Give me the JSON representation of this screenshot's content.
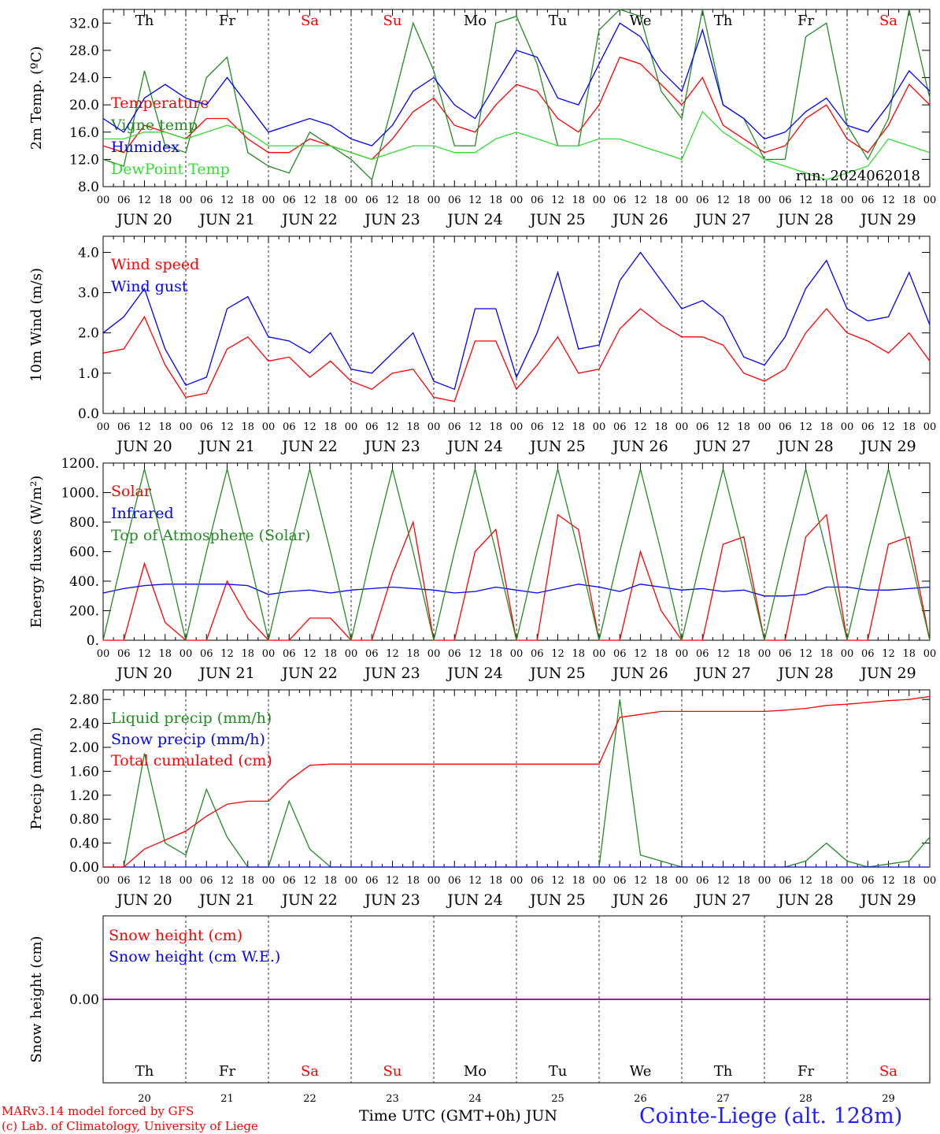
{
  "figure": {
    "credit_line1": "MARv3.14 model forced by GFS",
    "credit_line2": "(c) Lab. of Climatology, University of Liege",
    "x_title": "Time UTC (GMT+0h) JUN",
    "station": "Cointe-Liege (alt. 128m)",
    "run_label": "run: 2024062018",
    "colors": {
      "red": "#ff0000",
      "blue": "#0000ff",
      "green": "#228b22",
      "light_green": "#33dd33",
      "purple": "#800080",
      "weekend": "#ff0000",
      "axis": "#000000"
    }
  },
  "chart_data": [
    {
      "type": "line",
      "ylabel": "2m Temp. (ºC)",
      "ylim": [
        8,
        34
      ],
      "yticks": [
        "8.0",
        "12.0",
        "16.0",
        "20.0",
        "24.0",
        "28.0",
        "32.0"
      ],
      "ytick_values": [
        8,
        12,
        16,
        20,
        24,
        28,
        32
      ],
      "x_hour_labels": [
        "00",
        "06",
        "12",
        "18"
      ],
      "x_day_labels": [
        "JUN 20",
        "JUN 21",
        "JUN 22",
        "JUN 23",
        "JUN 24",
        "JUN 25",
        "JUN 26",
        "JUN 27",
        "JUN 28",
        "JUN 29"
      ],
      "weekday_labels": [
        "Th",
        "Fr",
        "Sa",
        "Su",
        "Mo",
        "Tu",
        "We",
        "Th",
        "Fr",
        "Sa"
      ],
      "weekend_days": [
        "Sa",
        "Su"
      ],
      "x_hours": [
        0,
        6,
        12,
        18,
        24,
        30,
        36,
        42,
        48,
        54,
        60,
        66,
        72,
        78,
        84,
        90,
        96,
        102,
        108,
        114,
        120,
        126,
        132,
        138,
        144,
        150,
        156,
        162,
        168,
        174,
        180,
        186,
        192,
        198,
        204,
        210,
        216,
        222,
        228,
        234,
        240
      ],
      "series": [
        {
          "name": "Temperature",
          "color": "#ff0000",
          "values": [
            14,
            13,
            17,
            16,
            15,
            18,
            18,
            15,
            13,
            13,
            15,
            14,
            13,
            12,
            15,
            19,
            21,
            17,
            16,
            20,
            23,
            22,
            18,
            16,
            20,
            27,
            26,
            23,
            20,
            24,
            17,
            15,
            13,
            14,
            18,
            20,
            15,
            13,
            17,
            23,
            20
          ]
        },
        {
          "name": "Vigne temp",
          "color": "#228b22",
          "values": [
            12,
            11,
            25,
            14,
            13,
            24,
            27,
            13,
            11,
            10,
            16,
            14,
            12,
            9,
            20,
            32,
            25,
            14,
            14,
            32,
            33,
            26,
            14,
            14,
            31,
            34,
            33,
            22,
            18,
            34,
            20,
            18,
            12,
            12,
            30,
            32,
            17,
            12,
            18,
            34,
            21
          ]
        },
        {
          "name": "Humidex",
          "color": "#0000ff",
          "values": [
            18,
            16,
            21,
            23,
            21,
            20,
            24,
            20,
            16,
            17,
            18,
            17,
            15,
            14,
            17,
            22,
            24,
            20,
            18,
            23,
            28,
            27,
            21,
            20,
            26,
            32,
            30,
            25,
            22,
            31,
            20,
            18,
            15,
            16,
            19,
            21,
            17,
            16,
            20,
            25,
            22
          ]
        },
        {
          "name": "DewPoint Temp",
          "color": "#33dd33",
          "values": [
            15,
            15,
            16,
            16,
            15,
            16,
            17,
            16,
            14,
            14,
            14,
            14,
            13,
            12,
            13,
            14,
            14,
            13,
            13,
            15,
            16,
            15,
            14,
            14,
            15,
            15,
            14,
            13,
            12,
            19,
            16,
            14,
            12,
            11,
            10,
            9,
            10,
            11,
            15,
            14,
            13
          ]
        }
      ]
    },
    {
      "type": "line",
      "ylabel": "10m Wind (m/s)",
      "ylim": [
        0,
        4.4
      ],
      "yticks": [
        "0.0",
        "1.0",
        "2.0",
        "3.0",
        "4.0"
      ],
      "ytick_values": [
        0,
        1,
        2,
        3,
        4
      ],
      "x_hour_labels": [
        "00",
        "06",
        "12",
        "18"
      ],
      "x_day_labels": [
        "JUN 20",
        "JUN 21",
        "JUN 22",
        "JUN 23",
        "JUN 24",
        "JUN 25",
        "JUN 26",
        "JUN 27",
        "JUN 28",
        "JUN 29"
      ],
      "x_hours": [
        0,
        6,
        12,
        18,
        24,
        30,
        36,
        42,
        48,
        54,
        60,
        66,
        72,
        78,
        84,
        90,
        96,
        102,
        108,
        114,
        120,
        126,
        132,
        138,
        144,
        150,
        156,
        162,
        168,
        174,
        180,
        186,
        192,
        198,
        204,
        210,
        216,
        222,
        228,
        234,
        240
      ],
      "series": [
        {
          "name": "Wind speed",
          "color": "#ff0000",
          "values": [
            1.5,
            1.6,
            2.4,
            1.2,
            0.4,
            0.5,
            1.6,
            1.9,
            1.3,
            1.4,
            0.9,
            1.3,
            0.8,
            0.6,
            1.0,
            1.1,
            0.4,
            0.3,
            1.8,
            1.8,
            0.6,
            1.2,
            1.9,
            1.0,
            1.1,
            2.1,
            2.6,
            2.2,
            1.9,
            1.9,
            1.7,
            1.0,
            0.8,
            1.1,
            2.0,
            2.6,
            2.0,
            1.8,
            1.5,
            2.0,
            1.3
          ]
        },
        {
          "name": "Wind gust",
          "color": "#0000ff",
          "values": [
            2.0,
            2.4,
            3.1,
            1.6,
            0.7,
            0.9,
            2.6,
            2.9,
            1.9,
            1.8,
            1.5,
            2.0,
            1.1,
            1.0,
            1.5,
            2.0,
            0.8,
            0.6,
            2.6,
            2.6,
            0.9,
            2.0,
            3.5,
            1.6,
            1.7,
            3.3,
            4.0,
            3.3,
            2.6,
            2.8,
            2.4,
            1.4,
            1.2,
            1.9,
            3.1,
            3.8,
            2.6,
            2.3,
            2.4,
            3.5,
            2.2
          ]
        }
      ]
    },
    {
      "type": "line",
      "ylabel": "Energy fluxes (W/m²)",
      "ylim": [
        0,
        1200
      ],
      "yticks": [
        "0.",
        "200.",
        "400.",
        "600.",
        "800.",
        "1000.",
        "1200."
      ],
      "ytick_values": [
        0,
        200,
        400,
        600,
        800,
        1000,
        1200
      ],
      "x_hour_labels": [
        "00",
        "06",
        "12",
        "18"
      ],
      "x_day_labels": [
        "JUN 20",
        "JUN 21",
        "JUN 22",
        "JUN 23",
        "JUN 24",
        "JUN 25",
        "JUN 26",
        "JUN 27",
        "JUN 28",
        "JUN 29"
      ],
      "x_hours": [
        0,
        6,
        12,
        18,
        24,
        30,
        36,
        42,
        48,
        54,
        60,
        66,
        72,
        78,
        84,
        90,
        96,
        102,
        108,
        114,
        120,
        126,
        132,
        138,
        144,
        150,
        156,
        162,
        168,
        174,
        180,
        186,
        192,
        198,
        204,
        210,
        216,
        222,
        228,
        234,
        240
      ],
      "series": [
        {
          "name": "Solar",
          "color": "#ff0000",
          "values": [
            0,
            0,
            520,
            120,
            0,
            0,
            400,
            150,
            0,
            0,
            150,
            150,
            0,
            0,
            450,
            800,
            0,
            0,
            600,
            750,
            0,
            0,
            850,
            750,
            0,
            0,
            600,
            200,
            0,
            0,
            650,
            700,
            0,
            0,
            700,
            850,
            0,
            0,
            650,
            700,
            0
          ]
        },
        {
          "name": "Infrared",
          "color": "#0000ff",
          "values": [
            320,
            350,
            370,
            380,
            380,
            380,
            380,
            370,
            310,
            330,
            340,
            320,
            340,
            350,
            360,
            350,
            340,
            320,
            330,
            360,
            340,
            320,
            350,
            380,
            360,
            330,
            380,
            360,
            340,
            350,
            330,
            340,
            300,
            300,
            310,
            360,
            360,
            340,
            340,
            350,
            360
          ]
        },
        {
          "name": "Top of Atmosphere (Solar)",
          "color": "#228b22",
          "values": [
            0,
            600,
            1160,
            600,
            0,
            600,
            1160,
            600,
            0,
            600,
            1160,
            600,
            0,
            600,
            1160,
            600,
            0,
            600,
            1160,
            600,
            0,
            600,
            1160,
            600,
            0,
            600,
            1160,
            600,
            0,
            600,
            1160,
            600,
            0,
            600,
            1160,
            600,
            0,
            600,
            1160,
            600,
            0
          ]
        }
      ]
    },
    {
      "type": "line",
      "ylabel": "Precip (mm/h)",
      "ylim": [
        0,
        2.96
      ],
      "yticks": [
        "0.00",
        "0.40",
        "0.80",
        "1.20",
        "1.60",
        "2.00",
        "2.40",
        "2.80"
      ],
      "ytick_values": [
        0,
        0.4,
        0.8,
        1.2,
        1.6,
        2.0,
        2.4,
        2.8
      ],
      "x_hour_labels": [
        "00",
        "06",
        "12",
        "18"
      ],
      "x_day_labels": [
        "JUN 20",
        "JUN 21",
        "JUN 22",
        "JUN 23",
        "JUN 24",
        "JUN 25",
        "JUN 26",
        "JUN 27",
        "JUN 28",
        "JUN 29"
      ],
      "x_hours": [
        0,
        6,
        12,
        18,
        24,
        30,
        36,
        42,
        48,
        54,
        60,
        66,
        72,
        78,
        84,
        90,
        96,
        102,
        108,
        114,
        120,
        126,
        132,
        138,
        144,
        150,
        156,
        162,
        168,
        174,
        180,
        186,
        192,
        198,
        204,
        210,
        216,
        222,
        228,
        234,
        240
      ],
      "series": [
        {
          "name": "Liquid precip (mm/h)",
          "color": "#228b22",
          "values": [
            0,
            0,
            1.9,
            0.4,
            0.2,
            1.3,
            0.5,
            0,
            0,
            1.1,
            0.3,
            0,
            0,
            0,
            0,
            0,
            0,
            0,
            0,
            0,
            0,
            0,
            0,
            0,
            0,
            2.8,
            0.2,
            0.1,
            0,
            0,
            0,
            0,
            0,
            0,
            0.1,
            0.4,
            0.1,
            0,
            0.05,
            0.1,
            0.5
          ]
        },
        {
          "name": "Snow precip (mm/h)",
          "color": "#0000ff",
          "values": [
            0,
            0,
            0,
            0,
            0,
            0,
            0,
            0,
            0,
            0,
            0,
            0,
            0,
            0,
            0,
            0,
            0,
            0,
            0,
            0,
            0,
            0,
            0,
            0,
            0,
            0,
            0,
            0,
            0,
            0,
            0,
            0,
            0,
            0,
            0,
            0,
            0,
            0,
            0,
            0,
            0
          ]
        },
        {
          "name": "Total cumulated (cm)",
          "color": "#ff0000",
          "values": [
            0,
            0,
            0.3,
            0.45,
            0.6,
            0.85,
            1.05,
            1.1,
            1.1,
            1.45,
            1.7,
            1.72,
            1.72,
            1.72,
            1.72,
            1.72,
            1.72,
            1.72,
            1.72,
            1.72,
            1.72,
            1.72,
            1.72,
            1.72,
            1.72,
            2.5,
            2.55,
            2.6,
            2.6,
            2.6,
            2.6,
            2.6,
            2.6,
            2.62,
            2.65,
            2.7,
            2.72,
            2.75,
            2.78,
            2.8,
            2.85
          ]
        }
      ]
    },
    {
      "type": "line",
      "ylabel": "Snow height (cm)",
      "ylim": [
        -1,
        1
      ],
      "yticks": [
        "0.00"
      ],
      "ytick_values": [
        0
      ],
      "x_hour_labels": [],
      "x_day_labels": [],
      "weekday_labels": [
        "Th",
        "Fr",
        "Sa",
        "Su",
        "Mo",
        "Tu",
        "We",
        "Th",
        "Fr",
        "Sa"
      ],
      "weekend_days": [
        "Sa",
        "Su"
      ],
      "date_numbers": [
        "20",
        "21",
        "22",
        "23",
        "24",
        "25",
        "26",
        "27",
        "28",
        "29"
      ],
      "x_hours": [
        0,
        240
      ],
      "series": [
        {
          "name": "Snow height (cm)",
          "color": "#ff0000",
          "values": [
            0,
            0
          ]
        },
        {
          "name": "Snow height (cm W.E.)",
          "color": "#0000ff",
          "values": [
            0,
            0
          ]
        }
      ]
    }
  ]
}
